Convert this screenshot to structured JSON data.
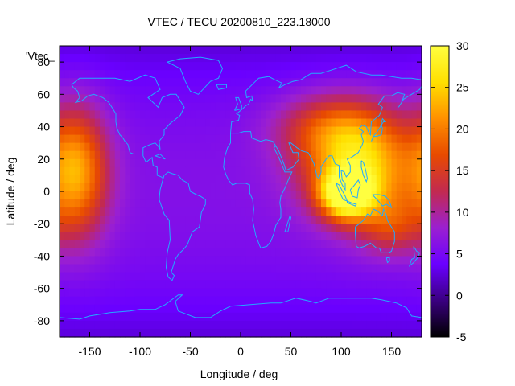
{
  "chart_data": {
    "type": "heatmap",
    "title": "VTEC / TECU 20200810_223.18000",
    "xlabel": "Longitude / deg",
    "ylabel": "Latitude / deg",
    "series_key": "'Vtec_",
    "xlim": [
      -180,
      180
    ],
    "ylim": [
      -90,
      90
    ],
    "xticks": [
      -150,
      -100,
      -50,
      0,
      50,
      100,
      150
    ],
    "yticks": [
      -80,
      -60,
      -40,
      -20,
      0,
      20,
      40,
      60,
      80
    ],
    "colorbar": {
      "min": -5,
      "max": 30,
      "ticks": [
        -5,
        0,
        5,
        10,
        15,
        20,
        25,
        30
      ]
    },
    "grid": false,
    "colormap": [
      "#000000",
      "#3a0080",
      "#6a00ff",
      "#9b20d0",
      "#c22a50",
      "#e84a00",
      "#ff9000",
      "#ffe000",
      "#ffff40"
    ],
    "coastline_color": "#22aaff",
    "approx_features": [
      {
        "name": "pacific-anomaly",
        "lon": -163,
        "lat": 12,
        "peak": 22,
        "spread_lon": 22,
        "spread_lat": 28
      },
      {
        "name": "asia-anomaly-north",
        "lon": 103,
        "lat": 18,
        "peak": 18,
        "spread_lon": 35,
        "spread_lat": 22
      },
      {
        "name": "indonesia-peak",
        "lon": 105,
        "lat": -2,
        "peak": 28,
        "spread_lon": 18,
        "spread_lat": 10
      },
      {
        "name": "east-asia-band",
        "lon": 135,
        "lat": 10,
        "peak": 16,
        "spread_lon": 30,
        "spread_lat": 25
      },
      {
        "name": "central-asia",
        "lon": 90,
        "lat": 40,
        "peak": 14,
        "spread_lon": 40,
        "spread_lat": 15
      },
      {
        "name": "australia-east",
        "lon": 150,
        "lat": -22,
        "peak": 12,
        "spread_lon": 20,
        "spread_lat": 12
      }
    ],
    "background_value": 6
  }
}
